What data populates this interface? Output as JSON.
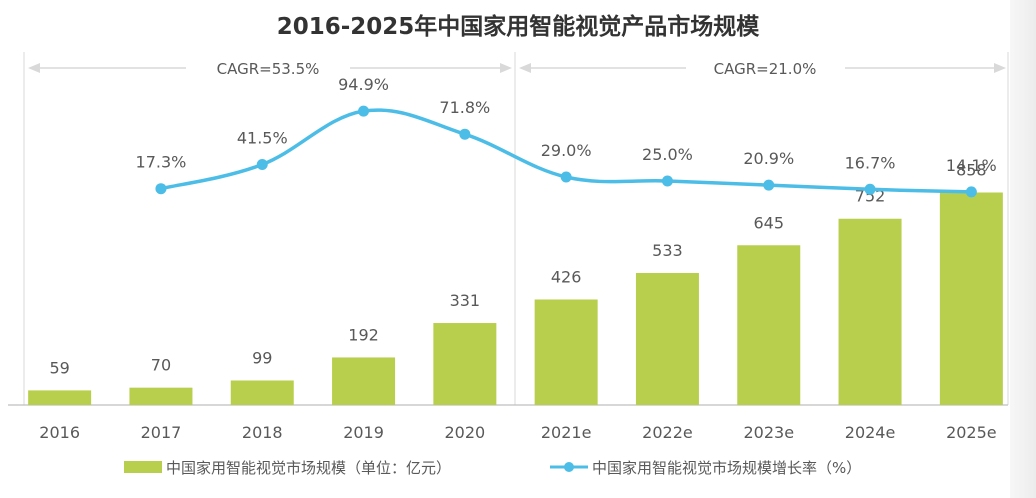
{
  "chart_data": {
    "type": "bar+line",
    "title": "2016-2025年中国家用智能视觉产品市场规模",
    "categories": [
      "2016",
      "2017",
      "2018",
      "2019",
      "2020",
      "2021e",
      "2022e",
      "2023e",
      "2024e",
      "2025e"
    ],
    "series": [
      {
        "name": "中国家用智能视觉市场规模（单位：亿元）",
        "type": "bar",
        "color": "#b8cf4e",
        "values": [
          59,
          70,
          99,
          192,
          331,
          426,
          533,
          645,
          752,
          858
        ],
        "labels": [
          "59",
          "70",
          "99",
          "192",
          "331",
          "426",
          "533",
          "645",
          "752",
          "858"
        ]
      },
      {
        "name": "中国家用智能视觉市场规模增长率（%）",
        "type": "line",
        "color": "#4cbde6",
        "values": [
          null,
          17.3,
          41.5,
          94.9,
          71.8,
          29.0,
          25.0,
          20.9,
          16.7,
          14.1
        ],
        "labels": [
          "",
          "17.3%",
          "41.5%",
          "94.9%",
          "71.8%",
          "29.0%",
          "25.0%",
          "20.9%",
          "16.7%",
          "14.1%"
        ]
      }
    ],
    "annotations": [
      {
        "text": "CAGR=53.5%",
        "range": [
          "2016",
          "2020"
        ]
      },
      {
        "text": "CAGR=21.0%",
        "range": [
          "2021e",
          "2025e"
        ]
      }
    ],
    "xlabel": "",
    "ylabel": "",
    "bar_ylim": [
      0,
      860
    ],
    "line_ylim": [
      0,
      100
    ],
    "grid": false,
    "legend_position": "bottom"
  }
}
